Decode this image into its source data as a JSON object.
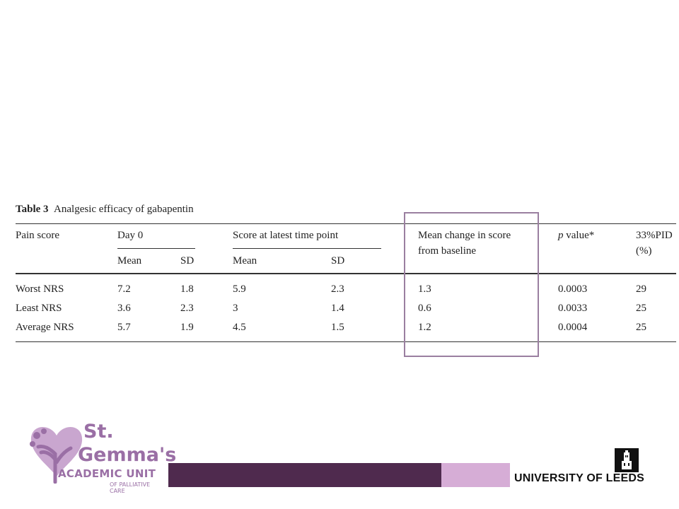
{
  "table": {
    "caption_label": "Table 3",
    "caption_title": "Analgesic efficacy of gabapentin",
    "headers": {
      "pain_score": "Pain score",
      "day0": "Day 0",
      "latest": "Score at latest time point",
      "mean_change_line1": "Mean change in score",
      "mean_change_line2": "from baseline",
      "p_value_italic": "p",
      "p_value_rest": " value*",
      "pid_line1": "33%PID",
      "pid_line2": "(%)",
      "mean": "Mean",
      "sd": "SD"
    },
    "rows": [
      {
        "label": "Worst NRS",
        "day0_mean": "7.2",
        "day0_sd": "1.8",
        "latest_mean": "5.9",
        "latest_sd": "2.3",
        "change": "1.3",
        "p": "0.0003",
        "pid": "29"
      },
      {
        "label": "Least NRS",
        "day0_mean": "3.6",
        "day0_sd": "2.3",
        "latest_mean": "3",
        "latest_sd": "1.4",
        "change": "0.6",
        "p": "0.0033",
        "pid": "25"
      },
      {
        "label": "Average NRS",
        "day0_mean": "5.7",
        "day0_sd": "1.9",
        "latest_mean": "4.5",
        "latest_sd": "1.5",
        "change": "1.2",
        "p": "0.0004",
        "pid": "25"
      }
    ]
  },
  "footer": {
    "logo_line1": "St.",
    "logo_line2": "Gemma's",
    "logo_line3": "ACADEMIC UNIT",
    "logo_line4": "OF PALLIATIVE CARE",
    "university": "UNIVERSITY OF LEEDS"
  },
  "colors": {
    "highlight": "#9a7fa0",
    "brand_purple": "#9a6fa5",
    "bar_dark": "#4f2a4e",
    "bar_light": "#d6add6"
  }
}
